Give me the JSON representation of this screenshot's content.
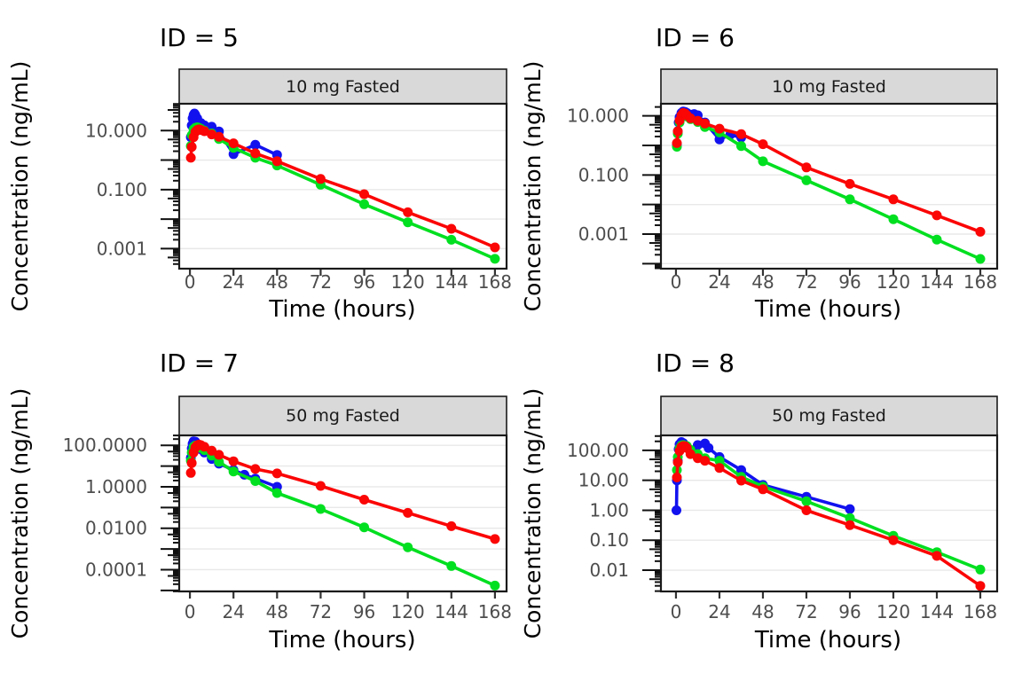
{
  "figure": {
    "x_axis_title": "Time (hours)",
    "y_axis_title": "Concentration (ng/mL)",
    "colors": {
      "blue": "#1212ef",
      "green": "#00df20",
      "red": "#fb0505",
      "grid": "#e8e8e8",
      "strip_bg": "#d9d9d9",
      "strip_border": "#1a1a1a",
      "panel_border": "#1a1a1a",
      "tick": "#333333",
      "tick_label": "#4d4d4d",
      "text": "#000000"
    }
  },
  "chart_data": [
    {
      "type": "line",
      "title": "ID = 5",
      "strip_label": "10 mg Fasted",
      "xlabel": "Time (hours)",
      "ylabel": "Concentration (ng/mL)",
      "x_ticks": [
        0,
        24,
        48,
        72,
        96,
        120,
        144,
        168
      ],
      "xlim": [
        -5.9,
        174.4
      ],
      "y_scale": "log10",
      "ylim_log10": [
        -3.68,
        1.91
      ],
      "y_labeled_decades": [
        1,
        -1,
        -3
      ],
      "y_label_decimals": 3,
      "grid": "horizontal-decades",
      "legend": "none",
      "series": [
        {
          "name": "blue",
          "color_key": "blue",
          "points": [
            [
              0.5,
              6
            ],
            [
              1,
              15
            ],
            [
              1.5,
              26
            ],
            [
              2,
              34
            ],
            [
              2.5,
              38
            ],
            [
              3,
              34
            ],
            [
              4,
              26
            ],
            [
              6,
              18
            ],
            [
              8,
              15
            ],
            [
              12,
              13.5
            ],
            [
              16,
              9.4
            ],
            [
              24,
              1.6
            ],
            [
              36,
              3.3
            ],
            [
              48,
              1.5
            ]
          ]
        },
        {
          "name": "green",
          "color_key": "green",
          "points": [
            [
              0.5,
              3
            ],
            [
              1,
              7
            ],
            [
              2,
              11
            ],
            [
              3,
              12.5
            ],
            [
              4,
              13
            ],
            [
              5,
              12.5
            ],
            [
              6,
              11.5
            ],
            [
              8,
              10
            ],
            [
              12,
              8
            ],
            [
              16,
              5.2
            ],
            [
              24,
              2.6
            ],
            [
              36,
              1.2
            ],
            [
              48,
              0.66
            ],
            [
              72,
              0.147
            ],
            [
              96,
              0.032
            ],
            [
              120,
              0.0078
            ],
            [
              144,
              0.002
            ],
            [
              168,
              0.00045
            ]
          ]
        },
        {
          "name": "red",
          "color_key": "red",
          "points": [
            [
              0.5,
              1.2
            ],
            [
              1,
              2.8
            ],
            [
              2,
              6
            ],
            [
              3,
              9
            ],
            [
              4,
              10.5
            ],
            [
              5,
              11
            ],
            [
              6,
              10.5
            ],
            [
              8,
              9.5
            ],
            [
              12,
              7.4
            ],
            [
              16,
              6.2
            ],
            [
              24,
              3.7
            ],
            [
              36,
              1.7
            ],
            [
              48,
              0.92
            ],
            [
              72,
              0.23
            ],
            [
              96,
              0.07
            ],
            [
              120,
              0.017
            ],
            [
              144,
              0.0047
            ],
            [
              168,
              0.0011
            ]
          ]
        }
      ]
    },
    {
      "type": "line",
      "title": "ID = 6",
      "strip_label": "10 mg Fasted",
      "xlabel": "Time (hours)",
      "ylabel": "Concentration (ng/mL)",
      "x_ticks": [
        0,
        24,
        48,
        72,
        96,
        120,
        144,
        168
      ],
      "xlim": [
        -8.3,
        177.3
      ],
      "y_scale": "log10",
      "ylim_log10": [
        -4.17,
        1.41
      ],
      "y_labeled_decades": [
        1,
        -1,
        -3
      ],
      "y_label_decimals": 3,
      "grid": "horizontal-decades",
      "legend": "none",
      "series": [
        {
          "name": "blue",
          "color_key": "blue",
          "points": [
            [
              0.5,
              1.1
            ],
            [
              1,
              3
            ],
            [
              1.5,
              6
            ],
            [
              2,
              9
            ],
            [
              3,
              12.5
            ],
            [
              4,
              14
            ],
            [
              5,
              13.5
            ],
            [
              6,
              12.5
            ],
            [
              8,
              11
            ],
            [
              10,
              11.5
            ],
            [
              12,
              10.5
            ],
            [
              16,
              6
            ],
            [
              24,
              1.6
            ],
            [
              30,
              2.3
            ],
            [
              36,
              1.85
            ]
          ]
        },
        {
          "name": "green",
          "color_key": "green",
          "points": [
            [
              0.5,
              0.9
            ],
            [
              1,
              2.5
            ],
            [
              2,
              6
            ],
            [
              3,
              9
            ],
            [
              4,
              10.5
            ],
            [
              6,
              9.5
            ],
            [
              8,
              7.8
            ],
            [
              12,
              6.2
            ],
            [
              16,
              4.2
            ],
            [
              24,
              2.75
            ],
            [
              36,
              0.95
            ],
            [
              48,
              0.29
            ],
            [
              72,
              0.066
            ],
            [
              96,
              0.015
            ],
            [
              120,
              0.0032
            ],
            [
              144,
              0.00065
            ],
            [
              168,
              0.000145
            ]
          ]
        },
        {
          "name": "red",
          "color_key": "red",
          "points": [
            [
              0.5,
              1.2
            ],
            [
              1,
              3
            ],
            [
              2,
              7
            ],
            [
              3,
              10.5
            ],
            [
              4,
              12.5
            ],
            [
              5,
              12
            ],
            [
              6,
              10.5
            ],
            [
              8,
              8.3
            ],
            [
              12,
              6.8
            ],
            [
              16,
              5.5
            ],
            [
              24,
              3.7
            ],
            [
              36,
              2.4
            ],
            [
              48,
              1.1
            ],
            [
              72,
              0.18
            ],
            [
              96,
              0.05
            ],
            [
              120,
              0.015
            ],
            [
              144,
              0.0043
            ],
            [
              168,
              0.0012
            ]
          ]
        }
      ]
    },
    {
      "type": "line",
      "title": "ID = 7",
      "strip_label": "50 mg Fasted",
      "xlabel": "Time (hours)",
      "ylabel": "Concentration (ng/mL)",
      "x_ticks": [
        0,
        24,
        48,
        72,
        96,
        120,
        144,
        168
      ],
      "xlim": [
        -5.9,
        174.4
      ],
      "y_scale": "log10",
      "ylim_log10": [
        -5.05,
        2.48
      ],
      "y_labeled_decades": [
        2,
        0,
        -2,
        -4
      ],
      "y_label_decimals": 4,
      "grid": "horizontal-decades",
      "legend": "none",
      "series": [
        {
          "name": "blue",
          "color_key": "blue",
          "points": [
            [
              0.5,
              25
            ],
            [
              1,
              70
            ],
            [
              1.5,
              120
            ],
            [
              2,
              155
            ],
            [
              3,
              150
            ],
            [
              4,
              110
            ],
            [
              6,
              65
            ],
            [
              8,
              45
            ],
            [
              12,
              22
            ],
            [
              16,
              13
            ],
            [
              24,
              6.5
            ],
            [
              30,
              3.8
            ],
            [
              36,
              2.5
            ],
            [
              48,
              1.0
            ]
          ]
        },
        {
          "name": "green",
          "color_key": "green",
          "points": [
            [
              0.5,
              18
            ],
            [
              1,
              45
            ],
            [
              2,
              85
            ],
            [
              3,
              98
            ],
            [
              4,
              92
            ],
            [
              6,
              75
            ],
            [
              8,
              58
            ],
            [
              12,
              32
            ],
            [
              16,
              16
            ],
            [
              24,
              5.5
            ],
            [
              36,
              1.9
            ],
            [
              48,
              0.5
            ],
            [
              72,
              0.085
            ],
            [
              96,
              0.011
            ],
            [
              120,
              0.0012
            ],
            [
              144,
              0.00015
            ],
            [
              168,
              1.7e-05
            ]
          ]
        },
        {
          "name": "red",
          "color_key": "red",
          "points": [
            [
              0.5,
              4.7
            ],
            [
              1,
              14
            ],
            [
              2,
              45
            ],
            [
              3,
              80
            ],
            [
              4,
              100
            ],
            [
              5,
              108
            ],
            [
              6,
              102
            ],
            [
              8,
              85
            ],
            [
              12,
              55
            ],
            [
              16,
              35
            ],
            [
              24,
              17
            ],
            [
              36,
              7.2
            ],
            [
              48,
              4.4
            ],
            [
              72,
              1.1
            ],
            [
              96,
              0.24
            ],
            [
              120,
              0.055
            ],
            [
              144,
              0.0125
            ],
            [
              168,
              0.003
            ]
          ]
        }
      ]
    },
    {
      "type": "line",
      "title": "ID = 8",
      "strip_label": "50 mg Fasted",
      "xlabel": "Time (hours)",
      "ylabel": "Concentration (ng/mL)",
      "x_ticks": [
        0,
        24,
        48,
        72,
        96,
        120,
        144,
        168
      ],
      "xlim": [
        -8.3,
        177.3
      ],
      "y_scale": "log10",
      "ylim_log10": [
        -2.71,
        2.5
      ],
      "y_labeled_decades": [
        2,
        1,
        0,
        -1,
        -2
      ],
      "y_label_decimals": 2,
      "grid": "horizontal-decades",
      "legend": "none",
      "series": [
        {
          "name": "blue",
          "color_key": "blue",
          "points": [
            [
              0.25,
              1.0
            ],
            [
              0.5,
              10
            ],
            [
              1,
              45
            ],
            [
              1.5,
              110
            ],
            [
              2,
              160
            ],
            [
              3,
              190
            ],
            [
              4,
              175
            ],
            [
              6,
              130
            ],
            [
              8,
              100
            ],
            [
              10,
              85
            ],
            [
              12,
              150
            ],
            [
              16,
              170
            ],
            [
              18,
              120
            ],
            [
              24,
              60
            ],
            [
              36,
              22
            ],
            [
              48,
              7
            ],
            [
              72,
              2.8
            ],
            [
              96,
              1.1
            ]
          ]
        },
        {
          "name": "green",
          "color_key": "green",
          "points": [
            [
              0.5,
              22
            ],
            [
              1,
              60
            ],
            [
              2,
              115
            ],
            [
              3,
              145
            ],
            [
              4,
              150
            ],
            [
              6,
              140
            ],
            [
              8,
              105
            ],
            [
              12,
              75
            ],
            [
              16,
              55
            ],
            [
              24,
              45
            ],
            [
              36,
              13
            ],
            [
              48,
              6.2
            ],
            [
              72,
              2.0
            ],
            [
              96,
              0.55
            ],
            [
              120,
              0.14
            ],
            [
              144,
              0.04
            ],
            [
              168,
              0.0105
            ]
          ]
        },
        {
          "name": "red",
          "color_key": "red",
          "points": [
            [
              0.5,
              12.5
            ],
            [
              1,
              40
            ],
            [
              2,
              95
            ],
            [
              3,
              130
            ],
            [
              4,
              140
            ],
            [
              5,
              138
            ],
            [
              6,
              120
            ],
            [
              8,
              75
            ],
            [
              12,
              55
            ],
            [
              16,
              45
            ],
            [
              24,
              26
            ],
            [
              36,
              9.8
            ],
            [
              48,
              5
            ],
            [
              72,
              1.0
            ],
            [
              96,
              0.32
            ],
            [
              120,
              0.1
            ],
            [
              144,
              0.03
            ],
            [
              168,
              0.003
            ]
          ]
        }
      ]
    }
  ]
}
